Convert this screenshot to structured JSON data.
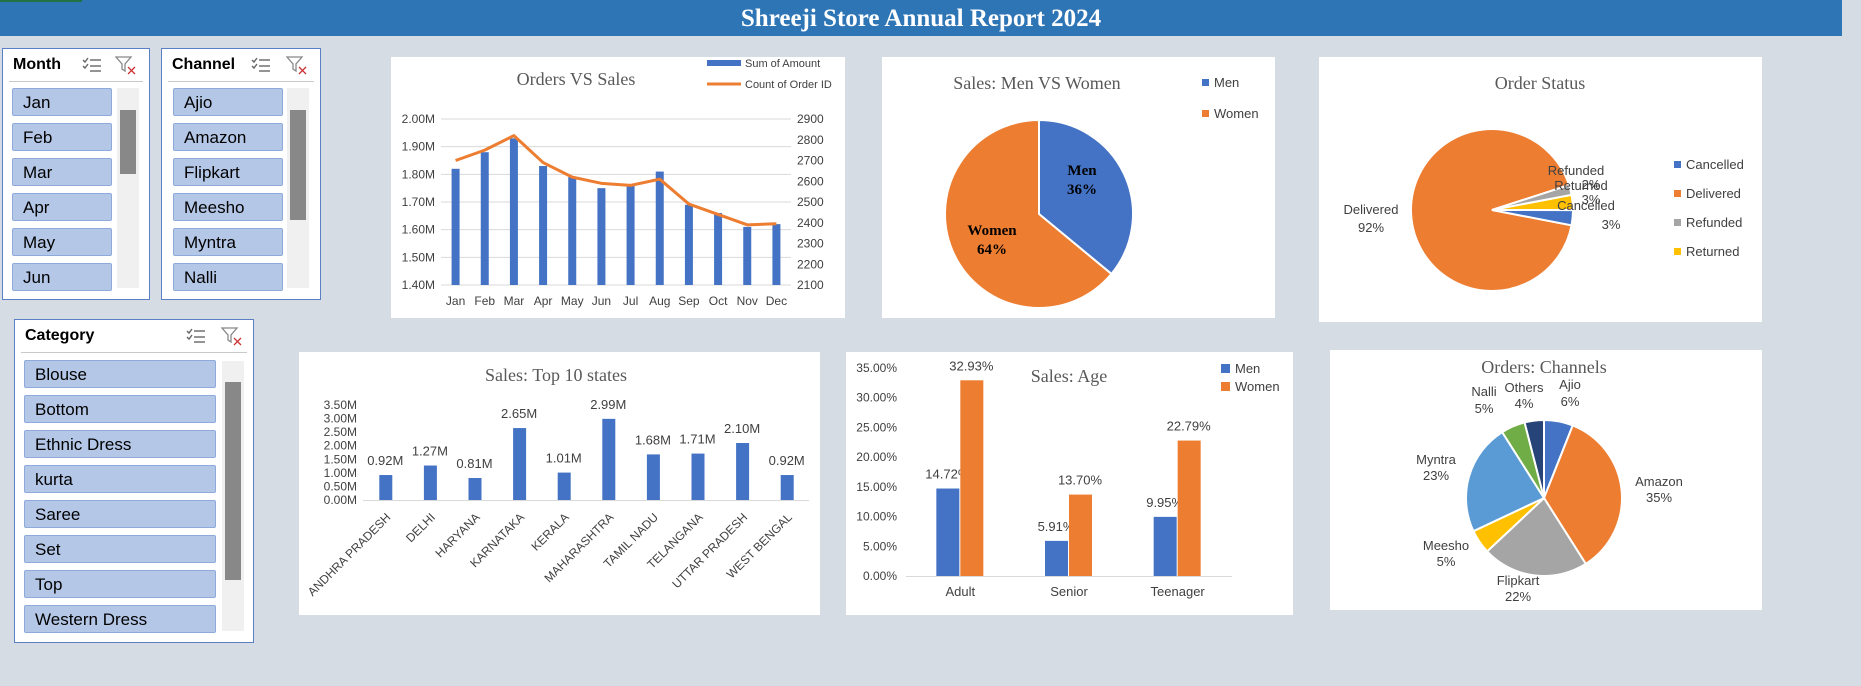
{
  "title": "Shreeji Store Annual Report 2024",
  "colors": {
    "blue": "#4472c4",
    "orange": "#ed7d31",
    "gray": "#a5a5a5",
    "yellow": "#ffc000",
    "lightblue": "#5b9bd5",
    "green": "#70ad47",
    "navy": "#264478"
  },
  "slicers": {
    "month": {
      "title": "Month",
      "items": [
        "Jan",
        "Feb",
        "Mar",
        "Apr",
        "May",
        "Jun"
      ]
    },
    "channel": {
      "title": "Channel",
      "items": [
        "Ajio",
        "Amazon",
        "Flipkart",
        "Meesho",
        "Myntra",
        "Nalli"
      ]
    },
    "category": {
      "title": "Category",
      "items": [
        "Blouse",
        "Bottom",
        "Ethnic Dress",
        "kurta",
        "Saree",
        "Set",
        "Top",
        "Western Dress"
      ]
    }
  },
  "chart_data": [
    {
      "id": "orders-vs-sales",
      "type": "bar",
      "title": "Orders VS Sales",
      "categories": [
        "Jan",
        "Feb",
        "Mar",
        "Apr",
        "May",
        "Jun",
        "Jul",
        "Aug",
        "Sep",
        "Oct",
        "Nov",
        "Dec"
      ],
      "series": [
        {
          "name": "Sum of Amount",
          "type": "bar",
          "axis": "left",
          "values": [
            1.82,
            1.88,
            1.93,
            1.83,
            1.79,
            1.75,
            1.76,
            1.81,
            1.69,
            1.66,
            1.61,
            1.62
          ]
        },
        {
          "name": "Count of Order ID",
          "type": "line",
          "axis": "right",
          "values": [
            2700,
            2750,
            2820,
            2690,
            2620,
            2590,
            2580,
            2610,
            2490,
            2440,
            2390,
            2395
          ]
        }
      ],
      "ylim": [
        1.4,
        2.0
      ],
      "yticks": [
        "1.40M",
        "1.50M",
        "1.60M",
        "1.70M",
        "1.80M",
        "1.90M",
        "2.00M"
      ],
      "y2lim": [
        2100,
        2900
      ],
      "y2ticks": [
        "2100",
        "2200",
        "2300",
        "2400",
        "2500",
        "2600",
        "2700",
        "2800",
        "2900"
      ],
      "legend": "top-right"
    },
    {
      "id": "sales-gender",
      "type": "pie",
      "title": "Sales: Men VS Women",
      "categories": [
        "Men",
        "Women"
      ],
      "values": [
        36,
        64
      ],
      "labels": [
        "36%",
        "64%"
      ],
      "legend": "right"
    },
    {
      "id": "order-status",
      "type": "pie",
      "title": "Order Status",
      "categories": [
        "Cancelled",
        "Delivered",
        "Refunded",
        "Returned"
      ],
      "values": [
        3,
        92,
        2,
        3
      ],
      "labels": [
        "3%",
        "92%",
        "2%",
        "3%"
      ],
      "legend": "right"
    },
    {
      "id": "top-states",
      "type": "bar",
      "title": "Sales: Top 10 states",
      "categories": [
        "ANDHRA PRADESH",
        "DELHI",
        "HARYANA",
        "KARNATAKA",
        "KERALA",
        "MAHARASHTRA",
        "TAMIL NADU",
        "TELANGANA",
        "UTTAR PRADESH",
        "WEST BENGAL"
      ],
      "values": [
        0.92,
        1.27,
        0.81,
        2.65,
        1.01,
        2.99,
        1.68,
        1.71,
        2.1,
        0.92
      ],
      "labels": [
        "0.92M",
        "1.27M",
        "0.81M",
        "2.65M",
        "1.01M",
        "2.99M",
        "1.68M",
        "1.71M",
        "2.10M",
        "0.92M"
      ],
      "ylim": [
        0,
        3.5
      ],
      "yticks": [
        "0.00M",
        "0.50M",
        "1.00M",
        "1.50M",
        "2.00M",
        "2.50M",
        "3.00M",
        "3.50M"
      ]
    },
    {
      "id": "sales-age",
      "type": "bar",
      "title": "Sales: Age",
      "categories": [
        "Adult",
        "Senior",
        "Teenager"
      ],
      "series": [
        {
          "name": "Men",
          "values": [
            14.72,
            5.91,
            9.95
          ],
          "labels": [
            "14.72%",
            "5.91%",
            "9.95%"
          ]
        },
        {
          "name": "Women",
          "values": [
            32.93,
            13.7,
            22.79
          ],
          "labels": [
            "32.93%",
            "13.70%",
            "22.79%"
          ]
        }
      ],
      "ylim": [
        0,
        35
      ],
      "yticks": [
        "0.00%",
        "5.00%",
        "10.00%",
        "15.00%",
        "20.00%",
        "25.00%",
        "30.00%",
        "35.00%"
      ],
      "legend": "top-right"
    },
    {
      "id": "orders-channels",
      "type": "pie",
      "title": "Orders: Channels",
      "categories": [
        "Ajio",
        "Amazon",
        "Flipkart",
        "Meesho",
        "Myntra",
        "Nalli",
        "Others"
      ],
      "values": [
        6,
        35,
        22,
        5,
        23,
        5,
        4
      ],
      "labels": [
        "6%",
        "35%",
        "22%",
        "5%",
        "23%",
        "5%",
        "4%"
      ]
    }
  ]
}
